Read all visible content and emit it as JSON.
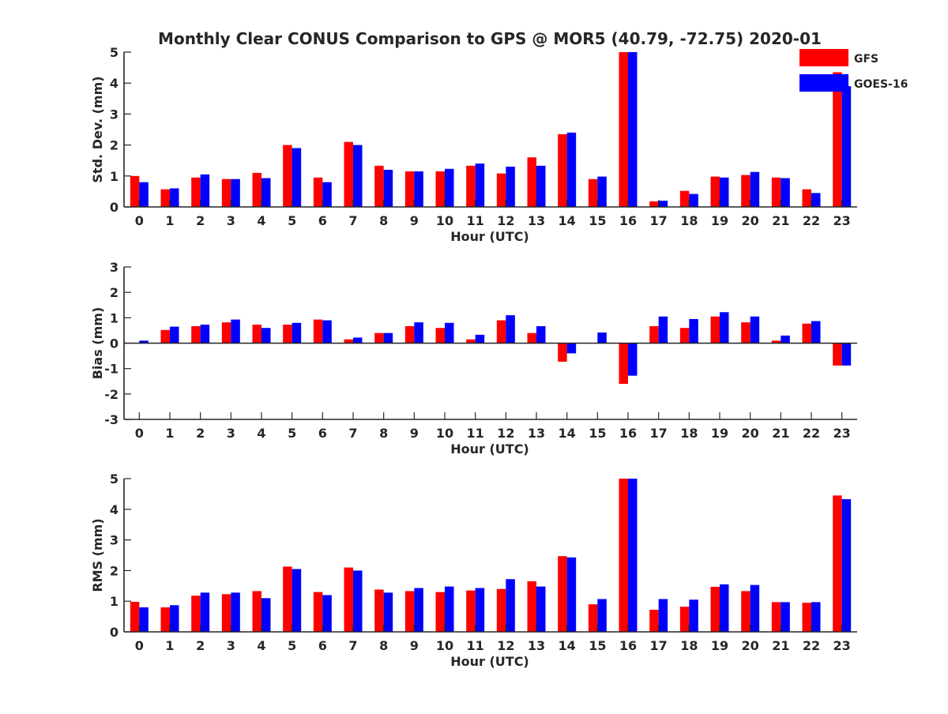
{
  "chart_data": {
    "type": "bar",
    "title": "Monthly Clear CONUS Comparison to GPS @ MOR5 (40.79, -72.75) 2020-01",
    "categories": [
      "0",
      "1",
      "2",
      "3",
      "4",
      "5",
      "6",
      "7",
      "8",
      "9",
      "10",
      "11",
      "12",
      "13",
      "14",
      "15",
      "16",
      "17",
      "18",
      "19",
      "20",
      "21",
      "22",
      "23"
    ],
    "legend": {
      "position": "top-right",
      "entries": [
        {
          "name": "GFS",
          "color": "#ff0000"
        },
        {
          "name": "GOES-16",
          "color": "#0000ff"
        }
      ]
    },
    "panels": [
      {
        "id": "std",
        "xlabel": "Hour (UTC)",
        "ylabel": "Std. Dev. (mm)",
        "ylim": [
          0,
          5
        ],
        "yticks": [
          "0",
          "1",
          "2",
          "3",
          "4",
          "5"
        ],
        "series": [
          {
            "name": "GFS",
            "values": [
              1.0,
              0.57,
              0.95,
              0.9,
              1.1,
              2.0,
              0.95,
              2.1,
              1.33,
              1.15,
              1.15,
              1.33,
              1.08,
              1.6,
              2.35,
              0.9,
              5.0,
              0.18,
              0.52,
              0.98,
              1.03,
              0.95,
              0.57,
              4.35
            ]
          },
          {
            "name": "GOES-16",
            "values": [
              0.8,
              0.6,
              1.05,
              0.9,
              0.93,
              1.9,
              0.8,
              2.0,
              1.2,
              1.15,
              1.23,
              1.4,
              1.3,
              1.33,
              2.4,
              0.98,
              5.0,
              0.2,
              0.42,
              0.95,
              1.13,
              0.93,
              0.45,
              3.9
            ]
          }
        ]
      },
      {
        "id": "bias",
        "xlabel": "Hour (UTC)",
        "ylabel": "Bias (mm)",
        "ylim": [
          -3,
          3
        ],
        "yticks": [
          "-3",
          "-2",
          "-1",
          "0",
          "1",
          "2",
          "3"
        ],
        "series": [
          {
            "name": "GFS",
            "values": [
              0.0,
              0.52,
              0.67,
              0.82,
              0.73,
              0.73,
              0.93,
              0.15,
              0.4,
              0.67,
              0.6,
              0.15,
              0.9,
              0.4,
              -0.73,
              0.0,
              -1.6,
              0.67,
              0.6,
              1.05,
              0.82,
              0.1,
              0.77,
              -0.88
            ]
          },
          {
            "name": "GOES-16",
            "values": [
              0.1,
              0.65,
              0.73,
              0.93,
              0.6,
              0.8,
              0.9,
              0.22,
              0.4,
              0.82,
              0.8,
              0.33,
              1.1,
              0.67,
              -0.4,
              0.42,
              -1.28,
              1.05,
              0.95,
              1.22,
              1.05,
              0.3,
              0.87,
              -0.88
            ]
          }
        ]
      },
      {
        "id": "rms",
        "xlabel": "Hour (UTC)",
        "ylabel": "RMS (mm)",
        "ylim": [
          0,
          5
        ],
        "yticks": [
          "0",
          "1",
          "2",
          "3",
          "4",
          "5"
        ],
        "series": [
          {
            "name": "GFS",
            "values": [
              0.98,
              0.8,
              1.18,
              1.23,
              1.33,
              2.13,
              1.3,
              2.1,
              1.38,
              1.33,
              1.3,
              1.35,
              1.4,
              1.65,
              2.47,
              0.9,
              5.0,
              0.72,
              0.82,
              1.47,
              1.33,
              0.97,
              0.95,
              4.45
            ]
          },
          {
            "name": "GOES-16",
            "values": [
              0.8,
              0.87,
              1.28,
              1.28,
              1.1,
              2.05,
              1.2,
              2.0,
              1.28,
              1.43,
              1.48,
              1.43,
              1.72,
              1.48,
              2.43,
              1.07,
              5.0,
              1.07,
              1.05,
              1.55,
              1.53,
              0.97,
              0.97,
              4.33
            ]
          }
        ]
      }
    ]
  }
}
